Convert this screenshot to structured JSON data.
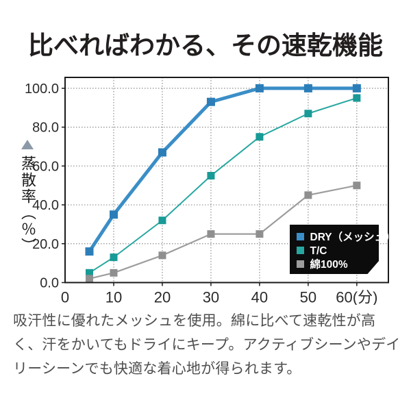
{
  "header": {
    "title": "比べればわかる、その速乾機能"
  },
  "chart_data": {
    "type": "line",
    "x": [
      5,
      10,
      20,
      30,
      40,
      50,
      60
    ],
    "xlim": [
      0,
      66.5
    ],
    "ylim": [
      0,
      105.6
    ],
    "x_ticks": [
      0,
      10,
      20,
      30,
      40,
      50,
      60
    ],
    "x_tick_labels": [
      "0",
      "10",
      "20",
      "30",
      "40",
      "50",
      "60(分)"
    ],
    "y_ticks": [
      0,
      20,
      40,
      60,
      80,
      100
    ],
    "y_tick_labels": [
      "0.0",
      "20.0",
      "40.0",
      "60.0",
      "80.0",
      "100.0"
    ],
    "ylabel": "蒸散率（％）",
    "grid": "dotted",
    "grid_color": "#8c8c8c",
    "border_color": "#1a1a1a",
    "tick_label_color": "#2b2b2b",
    "legend_position": "bottom-right",
    "legend_bg": "#0c0c0c",
    "legend_text_color": "#ffffff",
    "series": [
      {
        "name": "DRY（メッシュ）",
        "color": "#3b8ec7",
        "marker_color": "#2c7eb8",
        "line_width": 5,
        "marker_size": 12,
        "values": [
          16,
          35,
          67,
          93,
          100,
          100,
          100
        ]
      },
      {
        "name": "T/C",
        "color": "#27a7a0",
        "marker_color": "#189a96",
        "line_width": 2,
        "marker_size": 11,
        "values": [
          5,
          13,
          32,
          55,
          75,
          87,
          95
        ]
      },
      {
        "name": "綿100%",
        "color": "#9d9d9d",
        "marker_color": "#8f8f8f",
        "line_width": 2.2,
        "marker_size": 11,
        "values": [
          2,
          5,
          14,
          25,
          25,
          45,
          50
        ]
      }
    ]
  },
  "body": {
    "lines": [
      "吸汗性に優れたメッシュを使用。綿に比べて速乾性が高",
      "く、汗をかいてもドライにキープ。アクティブシーンやデイ",
      "リーシーンでも快適な着心地が得られます。"
    ]
  }
}
